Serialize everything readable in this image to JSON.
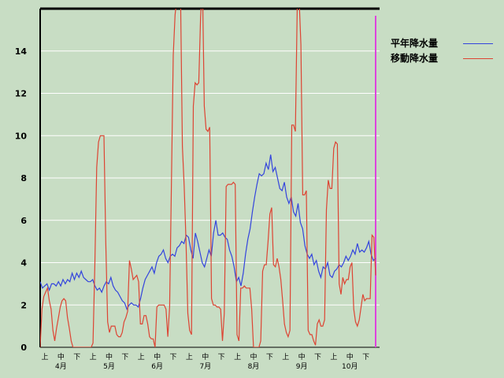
{
  "chart_data": {
    "type": "line",
    "title": "",
    "xlabel": "",
    "ylabel": "",
    "ylim": [
      0,
      16
    ],
    "y_ticks": [
      0,
      2,
      4,
      6,
      8,
      10,
      12,
      14
    ],
    "grid": true,
    "legend_position": "top-right",
    "x_ticks_period": [
      "上",
      "中",
      "下",
      "上",
      "中",
      "下",
      "上",
      "中",
      "下",
      "上",
      "中",
      "下",
      "上",
      "中",
      "下",
      "上",
      "中",
      "下",
      "上",
      "中",
      "下"
    ],
    "x_ticks_month": [
      "4月",
      "5月",
      "6月",
      "7月",
      "8月",
      "9月",
      "10月"
    ],
    "series": [
      {
        "name": "平年降水量",
        "color": "#3344dd",
        "values": [
          3.1,
          2.8,
          2.9,
          3,
          2.7,
          3,
          3,
          2.9,
          3.1,
          2.9,
          3.2,
          3,
          3.2,
          3.1,
          3.5,
          3.2,
          3.5,
          3.3,
          3.6,
          3.3,
          3.2,
          3.1,
          3.1,
          3.2,
          2.9,
          2.7,
          2.8,
          2.6,
          2.9,
          3.1,
          3,
          3.3,
          2.9,
          2.7,
          2.6,
          2.4,
          2.2,
          2.1,
          1.8,
          2,
          2.1,
          2,
          2,
          1.9,
          2.3,
          2.8,
          3.2,
          3.4,
          3.6,
          3.8,
          3.5,
          4,
          4.3,
          4.4,
          4.6,
          4.2,
          4,
          4.3,
          4.4,
          4.3,
          4.7,
          4.8,
          5,
          4.9,
          5.3,
          5.2,
          4.6,
          4.2,
          5.4,
          5,
          4.5,
          4,
          3.8,
          4.2,
          4.6,
          4.3,
          5.4,
          6,
          5.3,
          5.3,
          5.4,
          5.2,
          5.1,
          4.6,
          4.3,
          3.8,
          3.1,
          3.3,
          2.9,
          3.5,
          4.4,
          5.1,
          5.6,
          6.4,
          7.1,
          7.7,
          8.2,
          8.1,
          8.2,
          8.7,
          8.4,
          9.1,
          8.3,
          8.5,
          8,
          7.5,
          7.4,
          7.8,
          7.1,
          6.8,
          7.1,
          6.4,
          6.2,
          6.8,
          5.9,
          5.6,
          4.8,
          4.4,
          4.2,
          4.4,
          3.9,
          4.1,
          3.6,
          3.3,
          3.8,
          3.7,
          4,
          3.4,
          3.3,
          3.6,
          3.7,
          3.9,
          3.8,
          4,
          4.3,
          4.1,
          4.3,
          4.6,
          4.4,
          4.9,
          4.5,
          4.6,
          4.5,
          4.7,
          5,
          4.4,
          4.1,
          4.2
        ]
      },
      {
        "name": "移動降水量",
        "color": "#dd4433",
        "values": [
          0,
          1.8,
          2.4,
          2.6,
          2.8,
          2.2,
          1.8,
          0.8,
          0.3,
          0.9,
          1.4,
          1.9,
          2.2,
          2.3,
          2.2,
          1.4,
          0.9,
          0.3,
          0,
          0,
          0,
          0,
          0,
          0,
          0,
          0,
          0,
          0,
          0,
          0.2,
          4,
          8.5,
          9.7,
          10,
          10,
          10,
          5,
          1.2,
          0.7,
          1,
          1,
          1,
          0.6,
          0.5,
          0.5,
          0.7,
          1.2,
          1.4,
          1.7,
          4.1,
          3.7,
          3.2,
          3.3,
          3.4,
          3.1,
          1.1,
          1.1,
          1.5,
          1.5,
          1.1,
          0.5,
          0.4,
          0.4,
          0,
          1.9,
          2,
          2,
          2,
          2,
          1.8,
          0.5,
          1.9,
          7.8,
          13.8,
          15.7,
          16.5,
          17.2,
          16.5,
          9.5,
          7.6,
          5,
          1.6,
          0.8,
          0.6,
          11.4,
          12.5,
          12.4,
          12.5,
          15.6,
          17.2,
          11.4,
          10.3,
          10.2,
          10.4,
          2.3,
          2,
          2,
          1.9,
          1.9,
          1.8,
          0.3,
          1.6,
          7.6,
          7.7,
          7.7,
          7.7,
          7.8,
          7.7,
          0.6,
          0.3,
          2.8,
          2.8,
          2.9,
          2.8,
          2.8,
          2.8,
          1.8,
          0,
          0,
          0,
          0,
          0.3,
          3.6,
          3.9,
          3.9,
          5,
          6.3,
          6.6,
          3.9,
          3.8,
          4.2,
          3.8,
          3.2,
          2.2,
          1.1,
          0.7,
          0.5,
          0.8,
          10.5,
          10.5,
          10.2,
          16,
          16.5,
          14.3,
          7.2,
          7.2,
          7.4,
          0.8,
          0.6,
          0.6,
          0.3,
          0.1,
          1.1,
          1.3,
          1,
          1,
          1.3,
          6.5,
          7.9,
          7.5,
          7.5,
          9.4,
          9.7,
          9.6,
          3,
          2.5,
          3.3,
          3,
          3.2,
          3.2,
          3.8,
          4,
          1.8,
          1.2,
          1,
          1.3,
          1.9,
          2.5,
          2.2,
          2.3,
          2.3,
          2.3,
          5.3,
          5.2,
          3.4
        ]
      }
    ]
  }
}
